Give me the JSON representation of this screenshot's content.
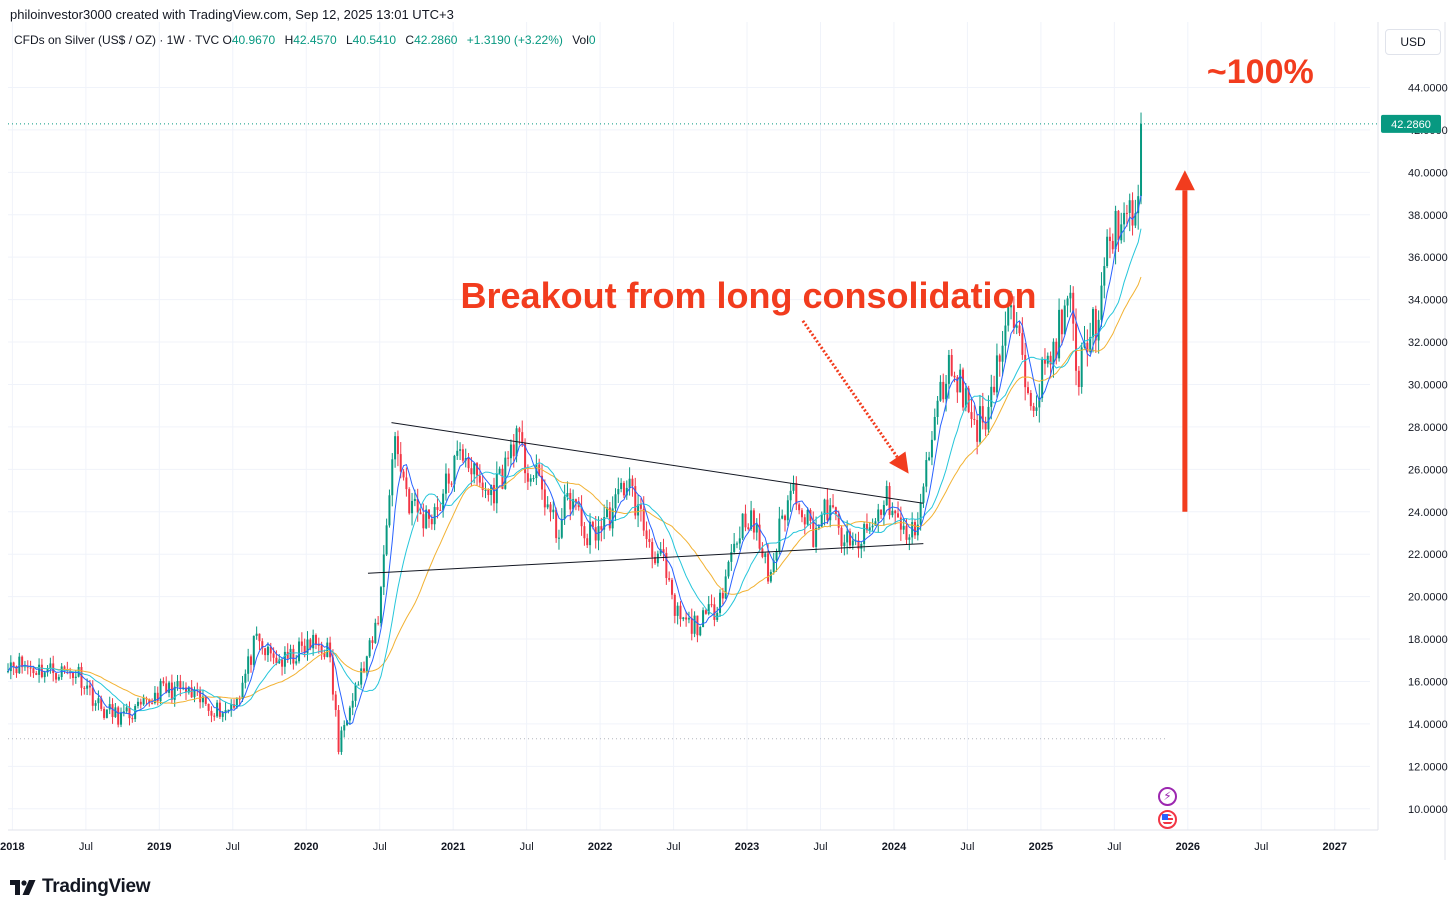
{
  "header": {
    "credit": "philoinvestor3000 created with TradingView.com, Sep 12, 2025 13:01 UTC+3",
    "symbol": "CFDs on Silver (US$ / OZ) · 1W · TVC",
    "ohlc": [
      {
        "label": "O",
        "value": "40.9670"
      },
      {
        "label": "H",
        "value": "42.4570"
      },
      {
        "label": "L",
        "value": "40.5410"
      },
      {
        "label": "C",
        "value": "42.2860"
      }
    ],
    "change": "+1.3190 (+3.22%)",
    "volume_label": "Vol",
    "volume_value": "0",
    "currency_button": "USD"
  },
  "brand": {
    "logo_text": "TradingView"
  },
  "colors": {
    "bull": "#089981",
    "bear": "#f23645",
    "ma_short": "#2962ff",
    "ma_mid": "#26c6da",
    "ma_long": "#f2b233",
    "annotation": "#f23c1e"
  },
  "chart_data": {
    "type": "candlestick",
    "title": "CFDs on Silver (US$ / OZ) · 1W · TVC",
    "xlabel": "",
    "ylabel": "USD",
    "x_ticks": [
      {
        "label": "2018",
        "t": 2018.0
      },
      {
        "label": "Jul",
        "t": 2018.5
      },
      {
        "label": "2019",
        "t": 2019.0
      },
      {
        "label": "Jul",
        "t": 2019.5
      },
      {
        "label": "2020",
        "t": 2020.0
      },
      {
        "label": "Jul",
        "t": 2020.5
      },
      {
        "label": "2021",
        "t": 2021.0
      },
      {
        "label": "Jul",
        "t": 2021.5
      },
      {
        "label": "2022",
        "t": 2022.0
      },
      {
        "label": "Jul",
        "t": 2022.5
      },
      {
        "label": "2023",
        "t": 2023.0
      },
      {
        "label": "Jul",
        "t": 2023.5
      },
      {
        "label": "2024",
        "t": 2024.0
      },
      {
        "label": "Jul",
        "t": 2024.5
      },
      {
        "label": "2025",
        "t": 2025.0
      },
      {
        "label": "Jul",
        "t": 2025.5
      },
      {
        "label": "2026",
        "t": 2026.0
      },
      {
        "label": "Jul",
        "t": 2026.5
      },
      {
        "label": "2027",
        "t": 2027.0
      }
    ],
    "y_ticks": [
      "44.0000",
      "42.0000",
      "40.0000",
      "38.0000",
      "36.0000",
      "34.0000",
      "32.0000",
      "30.0000",
      "28.0000",
      "26.0000",
      "24.0000",
      "22.0000",
      "20.0000",
      "18.0000",
      "16.0000",
      "14.0000",
      "12.0000",
      "10.0000"
    ],
    "xlim": [
      2017.97,
      2027.24
    ],
    "ylim": [
      9.0,
      45.2
    ],
    "grid": true,
    "current_price": {
      "label": "42.2860",
      "value": 42.286
    },
    "price_anchors": [
      [
        2017.97,
        17.0
      ],
      [
        2018.05,
        16.8
      ],
      [
        2018.15,
        16.6
      ],
      [
        2018.3,
        16.5
      ],
      [
        2018.45,
        16.4
      ],
      [
        2018.6,
        14.7
      ],
      [
        2018.75,
        14.3
      ],
      [
        2018.9,
        14.8
      ],
      [
        2019.0,
        15.6
      ],
      [
        2019.15,
        15.6
      ],
      [
        2019.35,
        14.8
      ],
      [
        2019.45,
        14.6
      ],
      [
        2019.55,
        15.5
      ],
      [
        2019.65,
        17.8
      ],
      [
        2019.75,
        17.2
      ],
      [
        2019.85,
        16.9
      ],
      [
        2019.95,
        17.4
      ],
      [
        2020.05,
        17.8
      ],
      [
        2020.15,
        17.5
      ],
      [
        2020.2,
        14.5
      ],
      [
        2020.22,
        12.8
      ],
      [
        2020.3,
        15.3
      ],
      [
        2020.38,
        16.4
      ],
      [
        2020.45,
        17.8
      ],
      [
        2020.5,
        19.5
      ],
      [
        2020.55,
        24.0
      ],
      [
        2020.6,
        27.5
      ],
      [
        2020.7,
        24.5
      ],
      [
        2020.8,
        23.6
      ],
      [
        2020.9,
        24.3
      ],
      [
        2021.0,
        26.0
      ],
      [
        2021.08,
        27.0
      ],
      [
        2021.15,
        25.5
      ],
      [
        2021.25,
        24.8
      ],
      [
        2021.35,
        26.0
      ],
      [
        2021.42,
        27.6
      ],
      [
        2021.5,
        26.0
      ],
      [
        2021.6,
        25.2
      ],
      [
        2021.7,
        23.0
      ],
      [
        2021.8,
        24.8
      ],
      [
        2021.9,
        22.8
      ],
      [
        2022.0,
        23.3
      ],
      [
        2022.1,
        24.2
      ],
      [
        2022.18,
        25.6
      ],
      [
        2022.28,
        23.6
      ],
      [
        2022.35,
        22.3
      ],
      [
        2022.42,
        21.8
      ],
      [
        2022.5,
        19.3
      ],
      [
        2022.6,
        18.6
      ],
      [
        2022.7,
        18.8
      ],
      [
        2022.78,
        19.5
      ],
      [
        2022.85,
        20.8
      ],
      [
        2022.9,
        22.3
      ],
      [
        2023.0,
        24.0
      ],
      [
        2023.1,
        22.2
      ],
      [
        2023.15,
        20.8
      ],
      [
        2023.25,
        24.0
      ],
      [
        2023.32,
        25.2
      ],
      [
        2023.45,
        23.0
      ],
      [
        2023.55,
        24.2
      ],
      [
        2023.62,
        23.2
      ],
      [
        2023.7,
        22.2
      ],
      [
        2023.8,
        22.8
      ],
      [
        2023.88,
        23.6
      ],
      [
        2023.95,
        24.8
      ],
      [
        2024.05,
        23.0
      ],
      [
        2024.12,
        22.8
      ],
      [
        2024.18,
        24.4
      ],
      [
        2024.26,
        27.5
      ],
      [
        2024.33,
        30.0
      ],
      [
        2024.4,
        31.0
      ],
      [
        2024.48,
        29.5
      ],
      [
        2024.55,
        28.0
      ],
      [
        2024.62,
        28.5
      ],
      [
        2024.7,
        31.0
      ],
      [
        2024.8,
        33.5
      ],
      [
        2024.87,
        31.0
      ],
      [
        2024.95,
        29.5
      ],
      [
        2025.05,
        31.0
      ],
      [
        2025.12,
        32.5
      ],
      [
        2025.2,
        33.8
      ],
      [
        2025.25,
        30.0
      ],
      [
        2025.32,
        32.5
      ],
      [
        2025.4,
        33.2
      ],
      [
        2025.45,
        36.0
      ],
      [
        2025.52,
        37.8
      ],
      [
        2025.6,
        37.5
      ],
      [
        2025.65,
        38.5
      ],
      [
        2025.68,
        40.9
      ],
      [
        2025.7,
        42.286
      ]
    ],
    "trendlines": [
      {
        "from": [
          2020.58,
          28.2
        ],
        "to": [
          2024.2,
          24.4
        ]
      },
      {
        "from": [
          2020.42,
          21.1
        ],
        "to": [
          2024.2,
          22.5
        ]
      }
    ],
    "annotations": [
      {
        "text": "Breakout from long consolidation",
        "x": 2021.05,
        "y": 33.6
      },
      {
        "text": "~100%",
        "x": 2026.13,
        "y": 44.2
      }
    ],
    "arrows": [
      {
        "from": [
          2023.38,
          33.0
        ],
        "to": [
          2024.1,
          25.8
        ]
      },
      {
        "from": [
          2025.98,
          24.0
        ],
        "to": [
          2025.98,
          40.1
        ]
      }
    ]
  }
}
